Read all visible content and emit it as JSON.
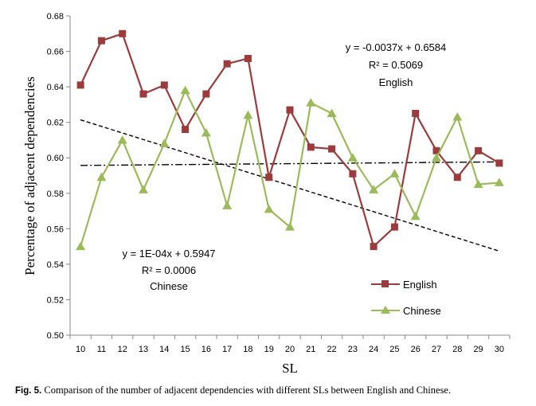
{
  "chart_data": {
    "type": "line",
    "xlabel": "SL",
    "ylabel": "Percentage of adjacent dependencies",
    "x": [
      10,
      11,
      12,
      13,
      14,
      15,
      16,
      17,
      18,
      19,
      20,
      21,
      22,
      23,
      24,
      25,
      26,
      27,
      28,
      29,
      30
    ],
    "ylim": [
      0.5,
      0.68
    ],
    "yticks": [
      "0.50",
      "0.52",
      "0.54",
      "0.56",
      "0.58",
      "0.60",
      "0.62",
      "0.64",
      "0.66",
      "0.68"
    ],
    "grid": false,
    "legend_position": "bottom-right",
    "series": [
      {
        "name": "English",
        "color": "#9b3b3b",
        "marker": "square",
        "values": [
          0.641,
          0.666,
          0.67,
          0.636,
          0.641,
          0.616,
          0.636,
          0.653,
          0.656,
          0.589,
          0.627,
          0.606,
          0.605,
          0.591,
          0.55,
          0.561,
          0.625,
          0.604,
          0.589,
          0.604,
          0.597
        ],
        "trendline": {
          "slope": -0.0037,
          "intercept": 0.6584,
          "style": "dashed"
        },
        "annotation": {
          "equation": "y = -0.0037x + 0.6584",
          "r2": "R² = 0.5069",
          "label": "English"
        }
      },
      {
        "name": "Chinese",
        "color": "#9bbb59",
        "marker": "triangle",
        "values": [
          0.55,
          0.589,
          0.61,
          0.582,
          0.608,
          0.638,
          0.614,
          0.573,
          0.624,
          0.571,
          0.561,
          0.631,
          0.625,
          0.6,
          0.582,
          0.591,
          0.567,
          0.6,
          0.623,
          0.585,
          0.586
        ],
        "trendline": {
          "slope": 0.0001,
          "intercept": 0.5947,
          "style": "dash-dot"
        },
        "annotation": {
          "equation": "y = 1E-04x + 0.5947",
          "r2": "R² = 0.0006",
          "label": "Chinese"
        }
      }
    ]
  },
  "caption": {
    "label": "Fig. 5.",
    "text": "Comparison of the number of adjacent dependencies with different SLs between English and Chinese."
  }
}
